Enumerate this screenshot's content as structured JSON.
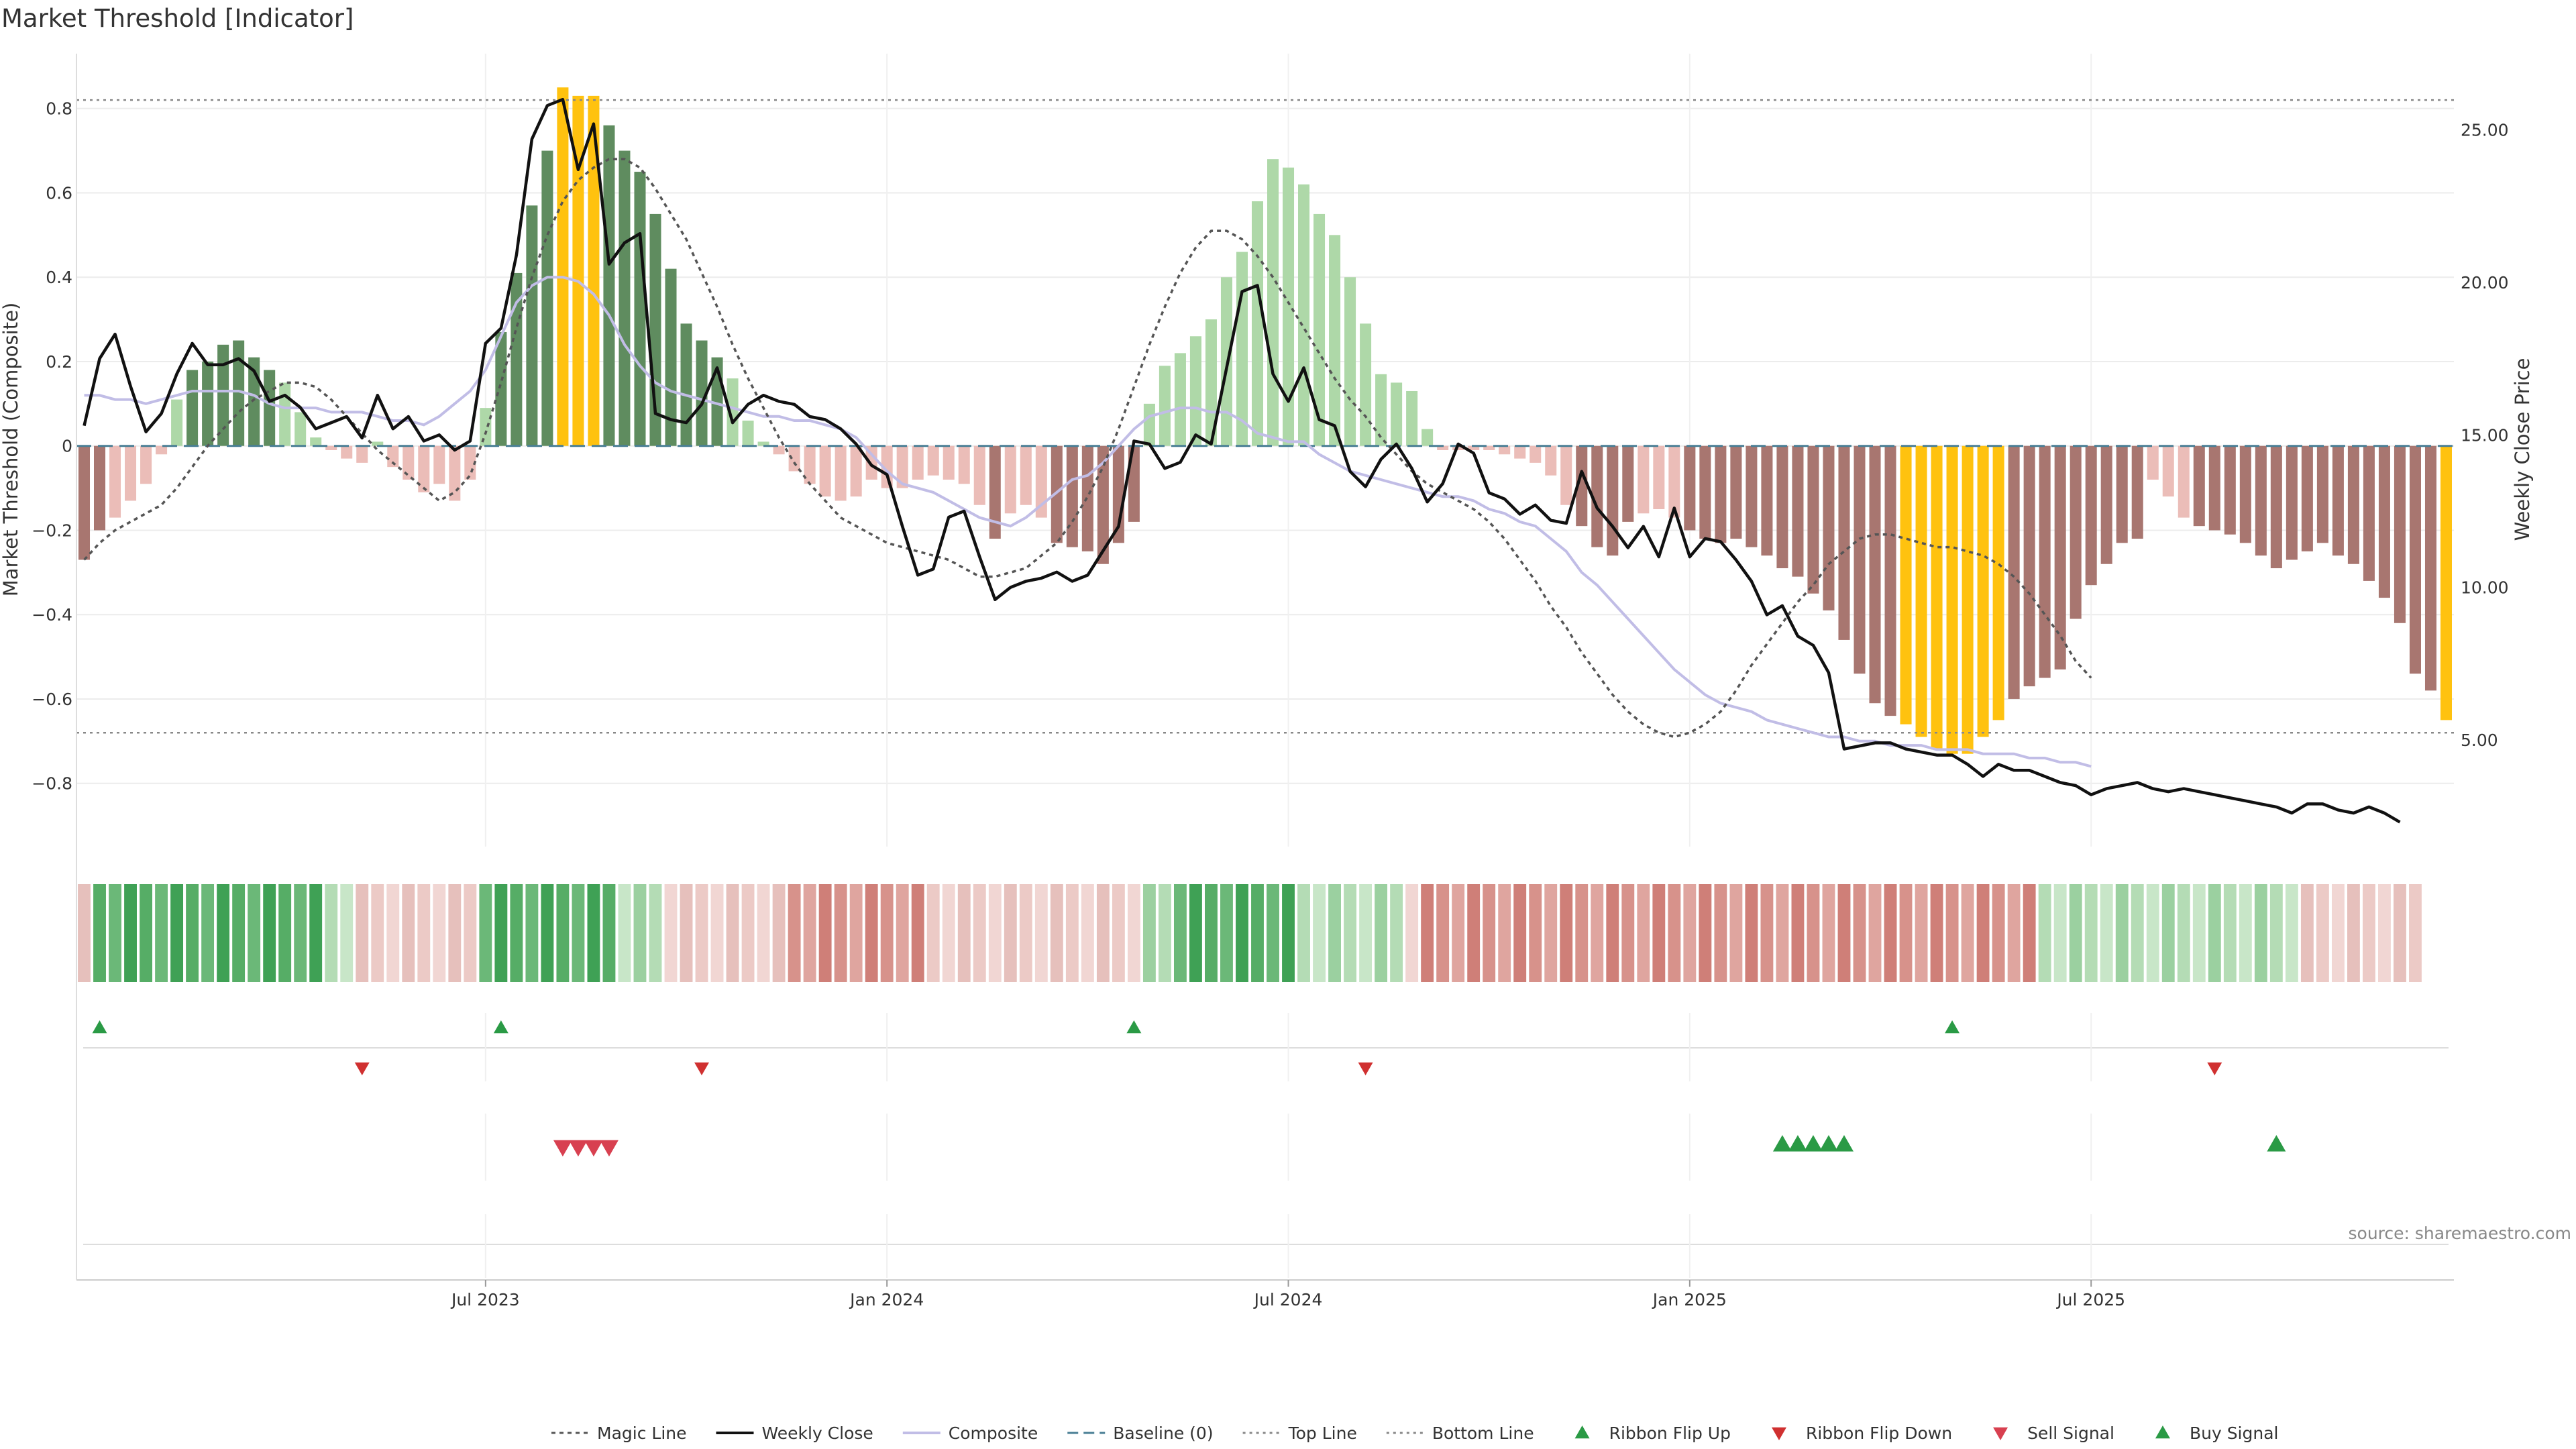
{
  "title": "Market Threshold [Indicator]",
  "source": "source: sharemaestro.com",
  "chart_data": {
    "type": "bar",
    "title": "Market Threshold [Indicator]",
    "ylabel_left": "Market Threshold (Composite)",
    "ylabel_right": "Weekly Close Price",
    "ylim_left": [
      -0.95,
      0.93
    ],
    "ylim_right": [
      1.5,
      27.5
    ],
    "yticks_left": [
      {
        "v": 0.8,
        "label": "0.8"
      },
      {
        "v": 0.6,
        "label": "0.6"
      },
      {
        "v": 0.4,
        "label": "0.4"
      },
      {
        "v": 0.2,
        "label": "0.2"
      },
      {
        "v": 0,
        "label": "0"
      },
      {
        "v": -0.2,
        "label": "−0.2"
      },
      {
        "v": -0.4,
        "label": "−0.4"
      },
      {
        "v": -0.6,
        "label": "−0.6"
      },
      {
        "v": -0.8,
        "label": "−0.8"
      }
    ],
    "yticks_right": [
      {
        "v": 25,
        "label": "25.00"
      },
      {
        "v": 20,
        "label": "20.00"
      },
      {
        "v": 15,
        "label": "15.00"
      },
      {
        "v": 10,
        "label": "10.00"
      },
      {
        "v": 5,
        "label": "5.00"
      }
    ],
    "xtick_labels": [
      "Jul 2023",
      "Jan 2024",
      "Jul 2024",
      "Jan 2025",
      "Jul 2025"
    ],
    "xtick_weeks": [
      26,
      52,
      78,
      104,
      130
    ],
    "top_line": 0.82,
    "bottom_line": -0.68,
    "baseline": 0,
    "composite": [
      -0.27,
      -0.2,
      -0.17,
      -0.13,
      -0.09,
      -0.02,
      0.11,
      0.18,
      0.2,
      0.24,
      0.25,
      0.21,
      0.18,
      0.15,
      0.08,
      0.02,
      -0.01,
      -0.03,
      -0.04,
      0.01,
      -0.05,
      -0.08,
      -0.11,
      -0.09,
      -0.13,
      -0.08,
      0.09,
      0.27,
      0.41,
      0.57,
      0.7,
      0.85,
      0.83,
      0.83,
      0.76,
      0.7,
      0.65,
      0.55,
      0.42,
      0.29,
      0.25,
      0.21,
      0.16,
      0.06,
      0.01,
      -0.02,
      -0.06,
      -0.09,
      -0.12,
      -0.13,
      -0.12,
      -0.08,
      -0.1,
      -0.1,
      -0.08,
      -0.07,
      -0.08,
      -0.09,
      -0.14,
      -0.22,
      -0.16,
      -0.14,
      -0.17,
      -0.23,
      -0.24,
      -0.25,
      -0.28,
      -0.23,
      -0.18,
      0.1,
      0.19,
      0.22,
      0.26,
      0.3,
      0.4,
      0.46,
      0.58,
      0.68,
      0.66,
      0.62,
      0.55,
      0.5,
      0.4,
      0.29,
      0.17,
      0.15,
      0.13,
      0.04,
      -0.01,
      -0.01,
      -0.01,
      -0.01,
      -0.02,
      -0.03,
      -0.04,
      -0.07,
      -0.14,
      -0.19,
      -0.24,
      -0.26,
      -0.18,
      -0.16,
      -0.15,
      -0.17,
      -0.2,
      -0.22,
      -0.23,
      -0.22,
      -0.24,
      -0.26,
      -0.29,
      -0.31,
      -0.35,
      -0.39,
      -0.46,
      -0.54,
      -0.61,
      -0.64,
      -0.66,
      -0.69,
      -0.72,
      -0.73,
      -0.73,
      -0.69,
      -0.65,
      -0.6,
      -0.57,
      -0.55,
      -0.53,
      -0.41,
      -0.33,
      -0.28,
      -0.23,
      -0.22,
      -0.08,
      -0.12,
      -0.17,
      -0.19,
      -0.2,
      -0.21,
      -0.23,
      -0.26,
      -0.29,
      -0.27,
      -0.25,
      -0.23,
      -0.26,
      -0.28,
      -0.32,
      -0.36,
      -0.42,
      -0.54,
      -0.58,
      -0.65
    ],
    "weekly_close": [
      15.3,
      17.5,
      18.3,
      16.6,
      15.1,
      15.7,
      17.0,
      18.0,
      17.3,
      17.3,
      17.5,
      17.1,
      16.1,
      16.3,
      15.9,
      15.2,
      15.4,
      15.6,
      14.9,
      16.3,
      15.2,
      15.6,
      14.8,
      15.0,
      14.5,
      14.8,
      18.0,
      18.5,
      20.9,
      24.7,
      25.8,
      26.0,
      23.7,
      25.2,
      20.6,
      21.3,
      21.6,
      15.7,
      15.5,
      15.4,
      16.0,
      17.2,
      15.4,
      16.0,
      16.3,
      16.1,
      16.0,
      15.6,
      15.5,
      15.2,
      14.7,
      14.0,
      13.7,
      12.0,
      10.4,
      10.6,
      12.3,
      12.5,
      11.0,
      9.6,
      10.0,
      10.2,
      10.3,
      10.5,
      10.2,
      10.4,
      11.2,
      12.0,
      14.8,
      14.7,
      13.9,
      14.1,
      15.0,
      14.7,
      17.2,
      19.7,
      19.9,
      17.0,
      16.1,
      17.2,
      15.5,
      15.3,
      13.8,
      13.3,
      14.2,
      14.7,
      13.9,
      12.8,
      13.4,
      14.7,
      14.4,
      13.1,
      12.9,
      12.4,
      12.7,
      12.2,
      12.1,
      13.8,
      12.6,
      12.0,
      11.3,
      12.0,
      11.0,
      12.6,
      11.0,
      11.6,
      11.5,
      10.9,
      10.2,
      9.1,
      9.4,
      8.4,
      8.1,
      7.2,
      4.7,
      4.8,
      4.9,
      4.9,
      4.7,
      4.6,
      4.5,
      4.5,
      4.2,
      3.8,
      4.2,
      4.0,
      4.0,
      3.8,
      3.6,
      3.5,
      3.2,
      3.4,
      3.5,
      3.6,
      3.4,
      3.3,
      3.4,
      3.3,
      3.2,
      3.1,
      3.0,
      2.9,
      2.8,
      2.6,
      2.9,
      2.9,
      2.7,
      2.6,
      2.8,
      2.6,
      2.3
    ],
    "magic_line": [
      -0.27,
      -0.23,
      -0.2,
      -0.18,
      -0.16,
      -0.14,
      -0.1,
      -0.05,
      0.0,
      0.04,
      0.08,
      0.11,
      0.13,
      0.15,
      0.15,
      0.14,
      0.11,
      0.07,
      0.03,
      -0.01,
      -0.04,
      -0.07,
      -0.1,
      -0.13,
      -0.11,
      -0.07,
      0.03,
      0.15,
      0.28,
      0.4,
      0.5,
      0.58,
      0.63,
      0.66,
      0.68,
      0.68,
      0.66,
      0.61,
      0.55,
      0.49,
      0.41,
      0.33,
      0.24,
      0.16,
      0.09,
      0.02,
      -0.04,
      -0.09,
      -0.13,
      -0.17,
      -0.19,
      -0.21,
      -0.23,
      -0.24,
      -0.25,
      -0.26,
      -0.27,
      -0.29,
      -0.31,
      -0.31,
      -0.3,
      -0.29,
      -0.26,
      -0.23,
      -0.18,
      -0.12,
      -0.05,
      0.04,
      0.14,
      0.24,
      0.33,
      0.41,
      0.47,
      0.51,
      0.51,
      0.49,
      0.45,
      0.4,
      0.34,
      0.28,
      0.22,
      0.16,
      0.11,
      0.07,
      0.02,
      -0.02,
      -0.06,
      -0.09,
      -0.11,
      -0.13,
      -0.15,
      -0.18,
      -0.22,
      -0.27,
      -0.32,
      -0.38,
      -0.43,
      -0.49,
      -0.54,
      -0.59,
      -0.63,
      -0.66,
      -0.68,
      -0.69,
      -0.68,
      -0.66,
      -0.63,
      -0.58,
      -0.52,
      -0.47,
      -0.42,
      -0.37,
      -0.33,
      -0.28,
      -0.25,
      -0.22,
      -0.21,
      -0.21,
      -0.22,
      -0.23,
      -0.24,
      -0.24,
      -0.25,
      -0.26,
      -0.28,
      -0.31,
      -0.35,
      -0.4,
      -0.45,
      -0.51,
      -0.55
    ],
    "composite_line": [
      0.12,
      0.12,
      0.11,
      0.11,
      0.1,
      0.11,
      0.12,
      0.13,
      0.13,
      0.13,
      0.13,
      0.12,
      0.1,
      0.09,
      0.09,
      0.09,
      0.08,
      0.08,
      0.08,
      0.07,
      0.06,
      0.06,
      0.05,
      0.07,
      0.1,
      0.13,
      0.18,
      0.26,
      0.34,
      0.38,
      0.4,
      0.4,
      0.39,
      0.36,
      0.31,
      0.24,
      0.19,
      0.15,
      0.13,
      0.12,
      0.11,
      0.1,
      0.09,
      0.08,
      0.07,
      0.07,
      0.06,
      0.06,
      0.05,
      0.04,
      0.02,
      -0.02,
      -0.06,
      -0.09,
      -0.1,
      -0.11,
      -0.13,
      -0.15,
      -0.17,
      -0.18,
      -0.19,
      -0.17,
      -0.14,
      -0.11,
      -0.08,
      -0.07,
      -0.04,
      0.0,
      0.04,
      0.07,
      0.08,
      0.09,
      0.09,
      0.08,
      0.08,
      0.06,
      0.03,
      0.02,
      0.01,
      0.01,
      -0.02,
      -0.04,
      -0.06,
      -0.07,
      -0.08,
      -0.09,
      -0.1,
      -0.11,
      -0.12,
      -0.12,
      -0.13,
      -0.15,
      -0.16,
      -0.18,
      -0.19,
      -0.22,
      -0.25,
      -0.3,
      -0.33,
      -0.37,
      -0.41,
      -0.45,
      -0.49,
      -0.53,
      -0.56,
      -0.59,
      -0.61,
      -0.62,
      -0.63,
      -0.65,
      -0.66,
      -0.67,
      -0.68,
      -0.69,
      -0.69,
      -0.7,
      -0.7,
      -0.71,
      -0.71,
      -0.71,
      -0.72,
      -0.72,
      -0.72,
      -0.73,
      -0.73,
      -0.73,
      -0.74,
      -0.74,
      -0.75,
      -0.75,
      -0.76
    ],
    "buckets": [
      2,
      0,
      0,
      0,
      0,
      0,
      0,
      0,
      0,
      0,
      0,
      0,
      0,
      0,
      0,
      0,
      1,
      1,
      2,
      2,
      2,
      2,
      2,
      2,
      2,
      2,
      0,
      0,
      0,
      0,
      0,
      0,
      0,
      0,
      0,
      1,
      1,
      1,
      2,
      2,
      2,
      2,
      2,
      2,
      2,
      2,
      3,
      3,
      3,
      3,
      3,
      3,
      3,
      3,
      3,
      2,
      2,
      2,
      2,
      2,
      2,
      2,
      2,
      2,
      2,
      2,
      2,
      2,
      2,
      1,
      1,
      0,
      0,
      0,
      0,
      0,
      0,
      0,
      0,
      1,
      1,
      1,
      1,
      1,
      1,
      1,
      2,
      3,
      3,
      3,
      3,
      3,
      3,
      3,
      3,
      3,
      3,
      3,
      3,
      3,
      3,
      3,
      3,
      3,
      3,
      3,
      3,
      3,
      3,
      3,
      3,
      3,
      3,
      3,
      3,
      3,
      3,
      3,
      3,
      3,
      3,
      3,
      3,
      3,
      3,
      3,
      3,
      1,
      1,
      1,
      1,
      1,
      1,
      1,
      1,
      1,
      1,
      1,
      1,
      1,
      1,
      1,
      1,
      1,
      2,
      2,
      2,
      2,
      2,
      2,
      2,
      2
    ],
    "ribbon_flip_up_weeks": [
      1,
      27,
      68,
      121
    ],
    "ribbon_flip_down_weeks": [
      18,
      40,
      83,
      138
    ],
    "sell_signal_weeks": [
      31,
      32,
      33,
      34
    ],
    "buy_signal_weeks": [
      110,
      111,
      112,
      113,
      114,
      142
    ],
    "legend": [
      "Magic Line",
      "Weekly Close",
      "Composite",
      "Baseline (0)",
      "Top Line",
      "Bottom Line",
      "Ribbon Flip Up",
      "Ribbon Flip Down",
      "Sell Signal",
      "Buy Signal"
    ],
    "legend_position": "bottom-center",
    "grid": true
  },
  "colors": {
    "bar_pos_dark": "#5f8c5f",
    "bar_pos_light": "#aed8a8",
    "bar_neg_dark": "#a87670",
    "bar_neg_light": "#ebbdb8",
    "bar_extreme": "#ffc20f",
    "close_line": "#111111",
    "composite_line": "#c1bde6",
    "magic_line": "#555555",
    "baseline": "#4a7f95",
    "ribbon_green": "#4caf64",
    "ribbon_red": "#d88a84",
    "flip_up": "#2a9a45",
    "flip_down": "#d03030",
    "sell": "#d84050",
    "buy": "#2a9a45"
  }
}
